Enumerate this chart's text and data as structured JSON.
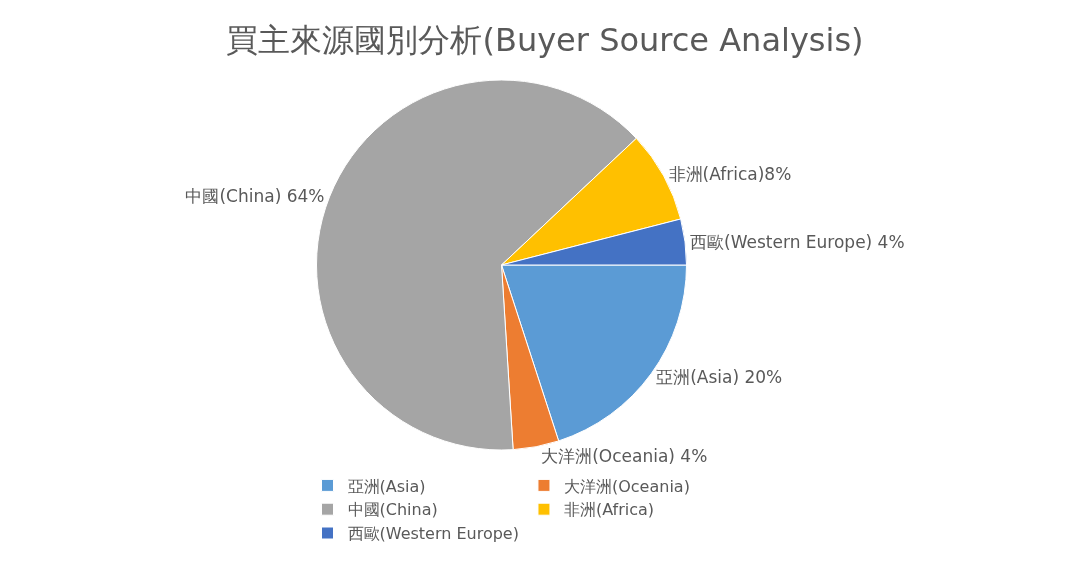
{
  "chart_data": {
    "type": "pie",
    "title": "買主來源國別分析(Buyer Source Analysis)",
    "categories": [
      "亞洲(Asia)",
      "大洋洲(Oceania)",
      "中國(China)",
      "非洲(Africa)",
      "西歐(Western Europe)"
    ],
    "values": [
      20,
      4,
      64,
      8,
      4
    ],
    "colors": [
      "#5b9bd5",
      "#ed7d31",
      "#a5a5a5",
      "#ffc000",
      "#4472c4"
    ],
    "value_labels": [
      "亞洲(Asia) 20%",
      "大洋洲(Oceania) 4%",
      "中國(China) 64%",
      "非洲(Africa)8%",
      "西歐(Western Europe) 4%"
    ],
    "legend": "bottom"
  }
}
